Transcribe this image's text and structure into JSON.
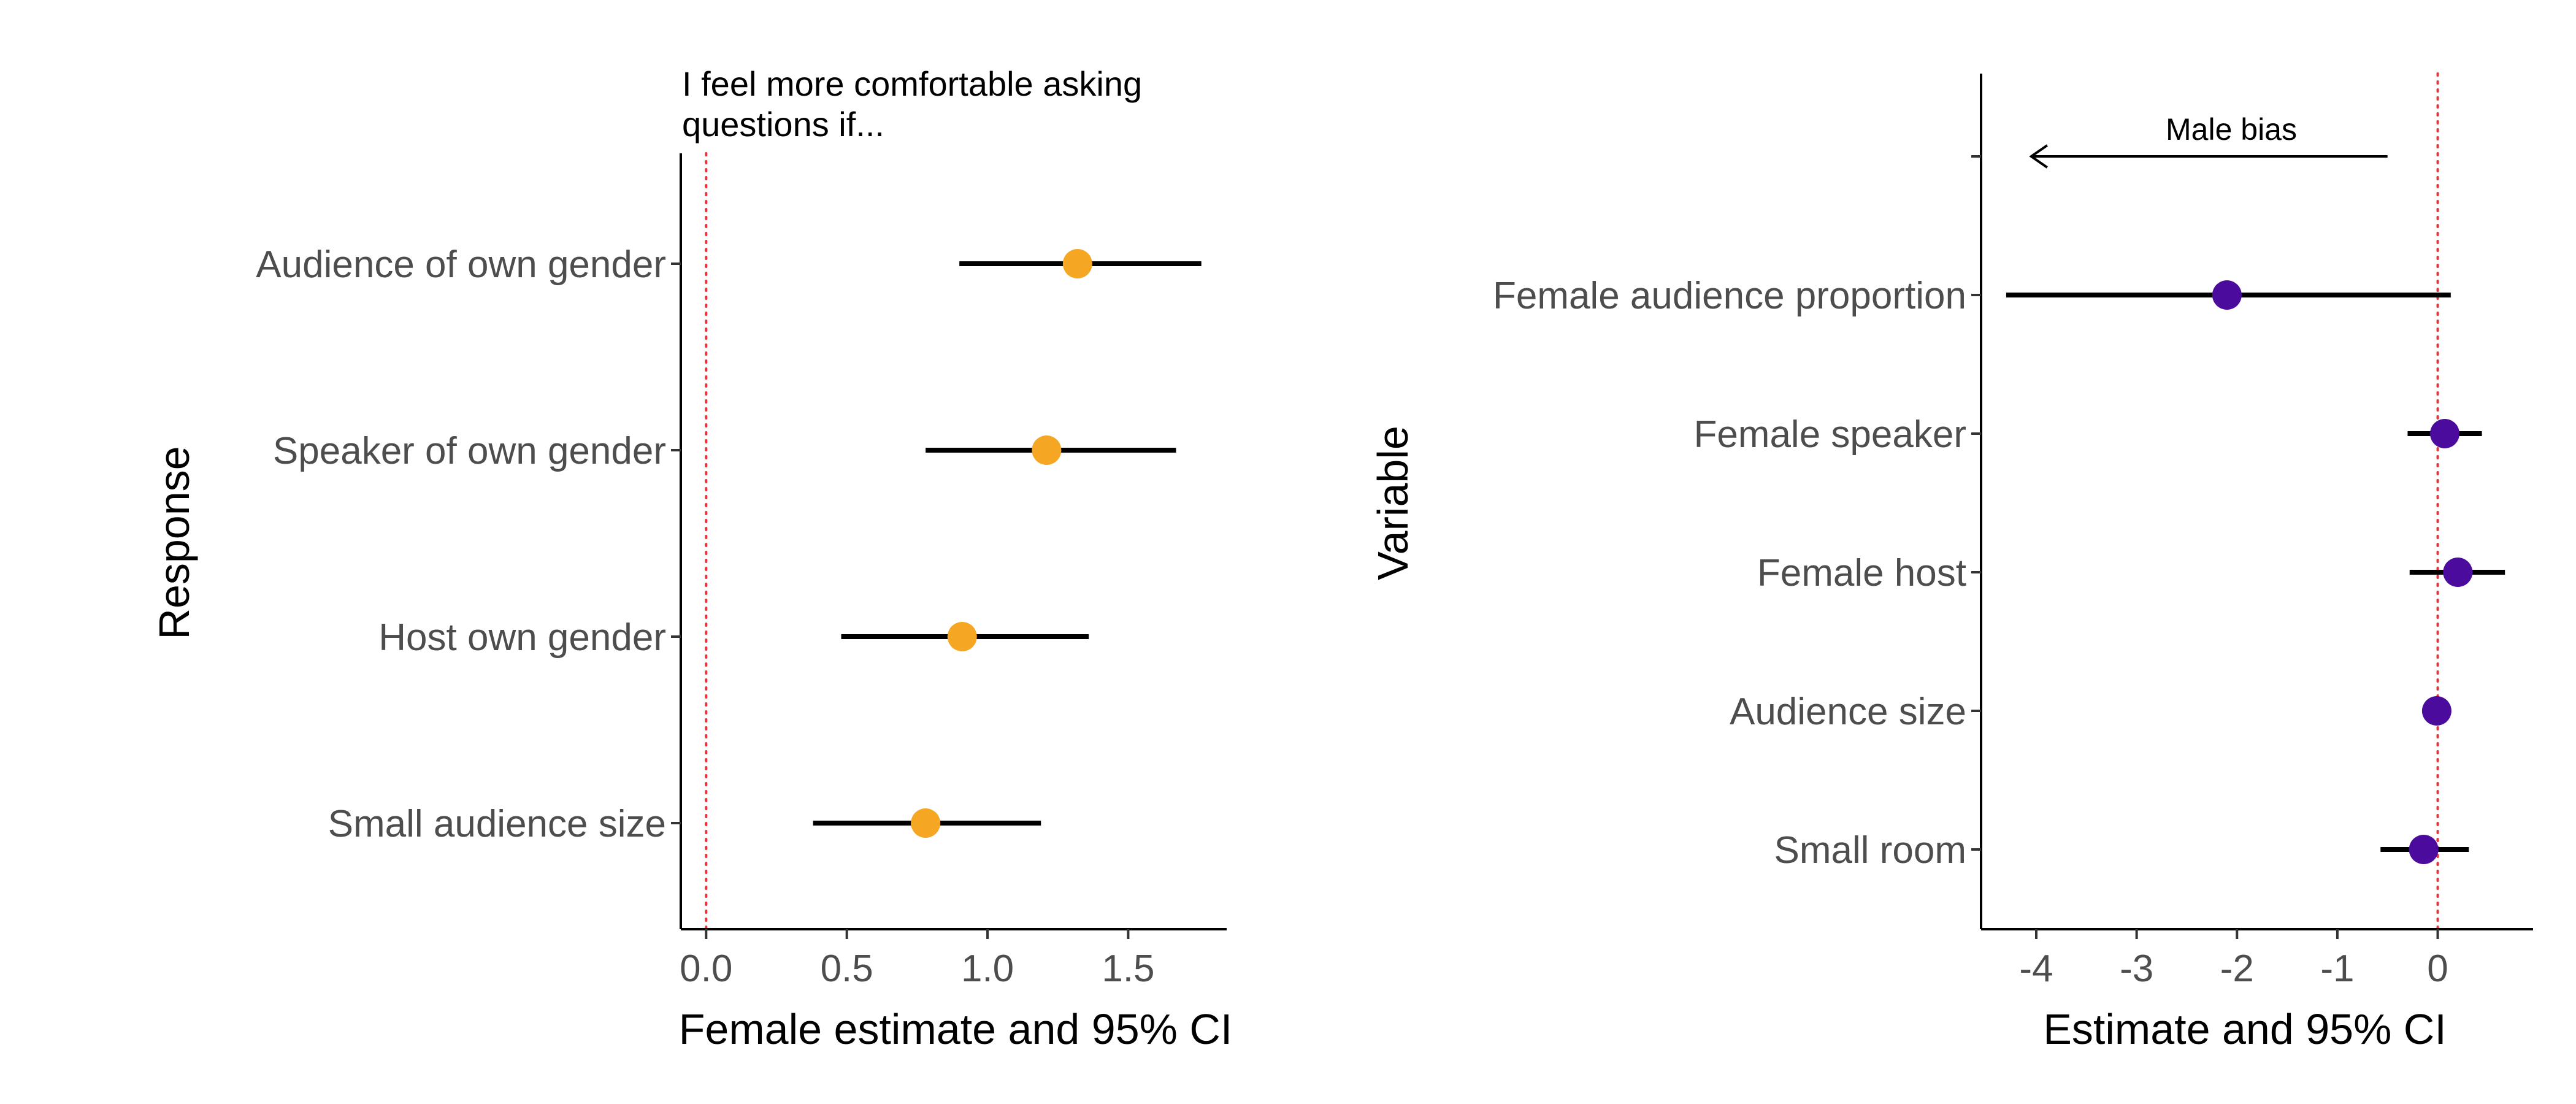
{
  "chart_data": [
    {
      "type": "scatter",
      "subtype": "dot-and-whisker",
      "title": "I feel more comfortable asking questions if...",
      "title_lines": [
        "I feel more comfortable asking",
        "questions if..."
      ],
      "xlabel": "Female estimate and 95% CI",
      "ylabel": "Response",
      "xlim": [
        -0.09,
        1.85
      ],
      "xticks": [
        0.0,
        0.5,
        1.0,
        1.5
      ],
      "xtick_labels": [
        "0.0",
        "0.5",
        "1.0",
        "1.5"
      ],
      "reference_line": 0,
      "categories": [
        "Audience of own gender",
        "Speaker of own gender",
        "Host own gender",
        "Small audience size"
      ],
      "series": [
        {
          "estimate": [
            1.32,
            1.21,
            0.91,
            0.78
          ],
          "lower": [
            0.9,
            0.78,
            0.48,
            0.38
          ],
          "upper": [
            1.76,
            1.67,
            1.36,
            1.19
          ]
        }
      ],
      "point_color": "#f5a623",
      "grid": false,
      "legend": "none"
    },
    {
      "type": "scatter",
      "subtype": "dot-and-whisker",
      "title": "",
      "xlabel": "Estimate and 95% CI",
      "ylabel": "Variable",
      "xlim": [
        -4.55,
        0.95
      ],
      "xticks": [
        -4,
        -3,
        -2,
        -1,
        0
      ],
      "xtick_labels": [
        "-4",
        "-3",
        "-2",
        "-1",
        "0"
      ],
      "reference_line": 0,
      "categories": [
        "",
        "Female audience proportion",
        "Female speaker",
        "Female host",
        "Audience size",
        "Small room"
      ],
      "series": [
        {
          "estimate": [
            null,
            -2.1,
            0.07,
            0.2,
            -0.01,
            -0.14
          ],
          "lower": [
            null,
            -4.3,
            -0.3,
            -0.28,
            null,
            -0.57
          ],
          "upper": [
            null,
            0.13,
            0.44,
            0.67,
            null,
            0.31
          ]
        }
      ],
      "annotation": {
        "text": "Male bias",
        "arrow_from": -0.5,
        "arrow_to": -4.05,
        "direction": "left"
      },
      "point_color": "#4b0c9e",
      "grid": false,
      "legend": "none"
    }
  ],
  "colors": {
    "left_points": "#f5a623",
    "right_points": "#4b0c9e",
    "reference_line": "#e8333a",
    "whiskers": "#000000",
    "tick_text": "#4d4d4d"
  }
}
